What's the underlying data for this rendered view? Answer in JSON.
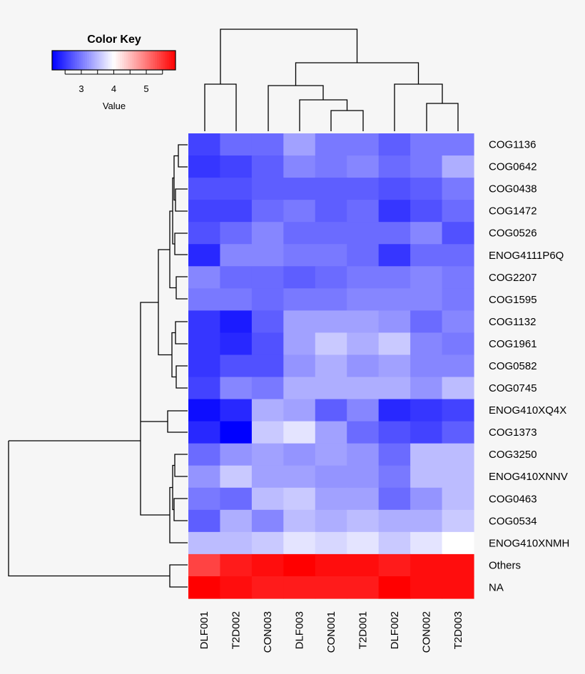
{
  "chart_data": {
    "type": "heatmap",
    "title": "",
    "columns": [
      "DLF001",
      "T2D002",
      "CON003",
      "DLF003",
      "CON001",
      "T2D001",
      "DLF002",
      "CON002",
      "T2D003"
    ],
    "rows": [
      "COG1136",
      "COG0642",
      "COG0438",
      "COG1472",
      "COG0526",
      "ENOG4111P6Q",
      "COG2207",
      "COG1595",
      "COG1132",
      "COG1961",
      "COG0582",
      "COG0745",
      "ENOG410XQ4X",
      "COG1373",
      "COG3250",
      "ENOG410XNNV",
      "COG0463",
      "COG0534",
      "ENOG410XNMH",
      "Others",
      "NA"
    ],
    "values": [
      [
        2.6,
        2.9,
        2.9,
        3.3,
        3.0,
        3.0,
        2.8,
        3.0,
        3.0
      ],
      [
        2.5,
        2.6,
        2.8,
        3.1,
        3.0,
        3.1,
        2.9,
        3.0,
        3.4
      ],
      [
        2.7,
        2.7,
        2.8,
        2.8,
        2.8,
        2.8,
        2.7,
        2.8,
        3.0
      ],
      [
        2.6,
        2.6,
        2.9,
        3.0,
        2.8,
        2.9,
        2.5,
        2.7,
        2.9
      ],
      [
        2.7,
        2.9,
        3.1,
        2.9,
        2.9,
        2.9,
        2.9,
        3.1,
        2.7
      ],
      [
        2.4,
        3.1,
        3.1,
        3.0,
        3.0,
        2.9,
        2.5,
        2.9,
        2.9
      ],
      [
        3.1,
        2.9,
        2.9,
        2.8,
        2.9,
        3.0,
        3.0,
        3.1,
        3.0
      ],
      [
        3.0,
        3.0,
        2.9,
        3.0,
        3.0,
        3.1,
        3.1,
        3.1,
        3.0
      ],
      [
        2.5,
        2.3,
        2.8,
        3.3,
        3.3,
        3.3,
        3.2,
        2.9,
        3.1
      ],
      [
        2.5,
        2.4,
        2.7,
        3.3,
        3.6,
        3.4,
        3.6,
        3.1,
        3.0
      ],
      [
        2.5,
        2.7,
        2.7,
        3.2,
        3.4,
        3.2,
        3.3,
        3.1,
        3.1
      ],
      [
        2.6,
        3.1,
        3.0,
        3.4,
        3.4,
        3.4,
        3.4,
        3.2,
        3.5
      ],
      [
        2.2,
        2.4,
        3.4,
        3.3,
        2.8,
        3.1,
        2.4,
        2.5,
        2.6
      ],
      [
        2.4,
        2.1,
        3.6,
        3.8,
        3.3,
        2.9,
        2.7,
        2.6,
        2.8
      ],
      [
        2.9,
        3.2,
        3.3,
        3.2,
        3.3,
        3.2,
        2.9,
        3.5,
        3.5
      ],
      [
        3.2,
        3.6,
        3.3,
        3.3,
        3.2,
        3.2,
        3.0,
        3.5,
        3.5
      ],
      [
        3.0,
        2.9,
        3.5,
        3.6,
        3.3,
        3.3,
        2.9,
        3.2,
        3.5
      ],
      [
        2.8,
        3.4,
        3.1,
        3.5,
        3.4,
        3.5,
        3.4,
        3.4,
        3.6
      ],
      [
        3.5,
        3.5,
        3.6,
        3.8,
        3.7,
        3.8,
        3.6,
        3.8,
        4.0
      ],
      [
        5.4,
        5.7,
        5.8,
        5.9,
        5.8,
        5.8,
        5.7,
        5.8,
        5.8
      ],
      [
        5.9,
        5.8,
        5.7,
        5.7,
        5.7,
        5.7,
        5.9,
        5.8,
        5.8
      ]
    ],
    "color_scale": {
      "low": "#0000ff",
      "mid": "#ffffff",
      "high": "#ff0000",
      "min": 2.1,
      "mid_value": 4.0,
      "max": 5.9
    },
    "color_key": {
      "title": "Color Key",
      "xlabel": "Value",
      "ticks": [
        "3",
        "4",
        "5"
      ],
      "tick_values": [
        3,
        4,
        5
      ]
    },
    "column_dendrogram": true,
    "row_dendrogram": true
  }
}
